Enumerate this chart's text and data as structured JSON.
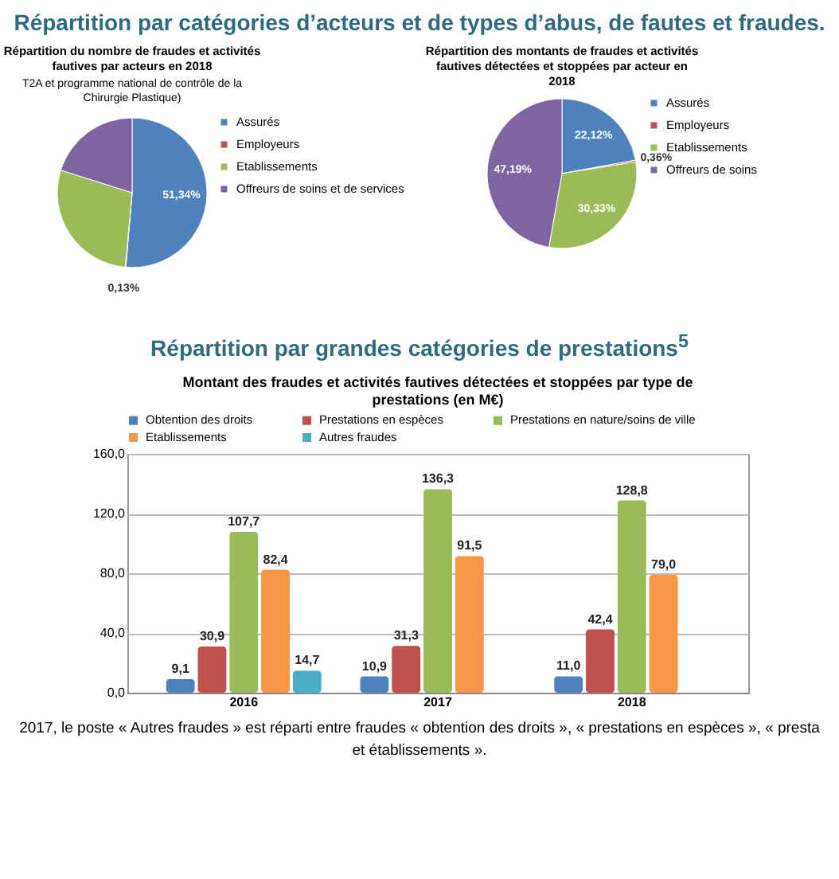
{
  "chart_data": [
    {
      "type": "pie",
      "title": "Répartition par catégories d’acteurs et de types d’abus, de fautes et fraudes.",
      "subtitle": "Répartition du nombre de fraudes et activités fautives par acteurs en 2018",
      "annotations": [
        "T2A et programme national de contrôle de la Chirurgie Plastique)"
      ],
      "categories": [
        "Assurés",
        "Employeurs",
        "Etablissements",
        "Offreurs de soins et de services"
      ],
      "values": [
        51.34,
        0.13,
        28.38,
        20.15
      ],
      "value_labels": [
        "51,34%",
        "0,13%",
        null,
        null
      ],
      "colors": [
        "#4f81bd",
        "#c0504d",
        "#9bbb59",
        "#8064a2"
      ],
      "legend": "right"
    },
    {
      "type": "pie",
      "subtitle": "Répartition des montants de fraudes et activités fautives détectées et stoppées par acteur en 2018",
      "categories": [
        "Assurés",
        "Employeurs",
        "Etablissements",
        "Offreurs de soins"
      ],
      "values": [
        22.12,
        0.36,
        30.33,
        47.19
      ],
      "value_labels": [
        "22,12%",
        "0,36%",
        "30,33%",
        "47,19%"
      ],
      "colors": [
        "#4f81bd",
        "#c0504d",
        "#9bbb59",
        "#8064a2"
      ],
      "legend": "right"
    },
    {
      "type": "bar",
      "title": "Répartition par grandes catégories de prestations$^{5}$",
      "subtitle": "Montant des fraudes et activités fautives détectées et stoppées par type de prestations (en M€)",
      "categories": [
        "2016",
        "2017",
        "2018"
      ],
      "series": [
        {
          "name": "Obtention des droits",
          "color": "#4f81bd",
          "values": [
            9.1,
            10.9,
            11.0
          ],
          "value_labels": [
            "9,1",
            "10,9",
            "11,0"
          ]
        },
        {
          "name": "Prestations en espèces",
          "color": "#c0504d",
          "values": [
            30.9,
            31.3,
            42.4
          ],
          "value_labels": [
            "30,9",
            "31,3",
            "42,4"
          ]
        },
        {
          "name": "Prestations en nature/soins de ville",
          "color": "#9bbb59",
          "values": [
            107.7,
            136.3,
            128.8
          ],
          "value_labels": [
            "107,7",
            "136,3",
            "128,8"
          ]
        },
        {
          "name": "Etablissements",
          "color": "#f79646",
          "values": [
            82.4,
            91.5,
            79.0
          ],
          "value_labels": [
            "82,4",
            "91,5",
            "79,0"
          ]
        },
        {
          "name": "Autres fraudes",
          "color": "#4bacc6",
          "values": [
            14.7,
            null,
            null
          ],
          "value_labels": [
            "14,7",
            null,
            null
          ]
        }
      ],
      "ylim": [
        0,
        160
      ],
      "yticks": [
        {
          "value": 0,
          "label": "0,0"
        },
        {
          "value": 40,
          "label": "40,0"
        },
        {
          "value": 80,
          "label": "80,0"
        },
        {
          "value": 120,
          "label": "120,0"
        },
        {
          "value": 160,
          "label": "160,0"
        }
      ],
      "grid": "y",
      "legend": "top",
      "annotations": [
        "2017, le poste « Autres fraudes » est réparti entre fraudes « obtention des droits », « prestations en espèces », « presta",
        "et établissements »."
      ]
    }
  ]
}
